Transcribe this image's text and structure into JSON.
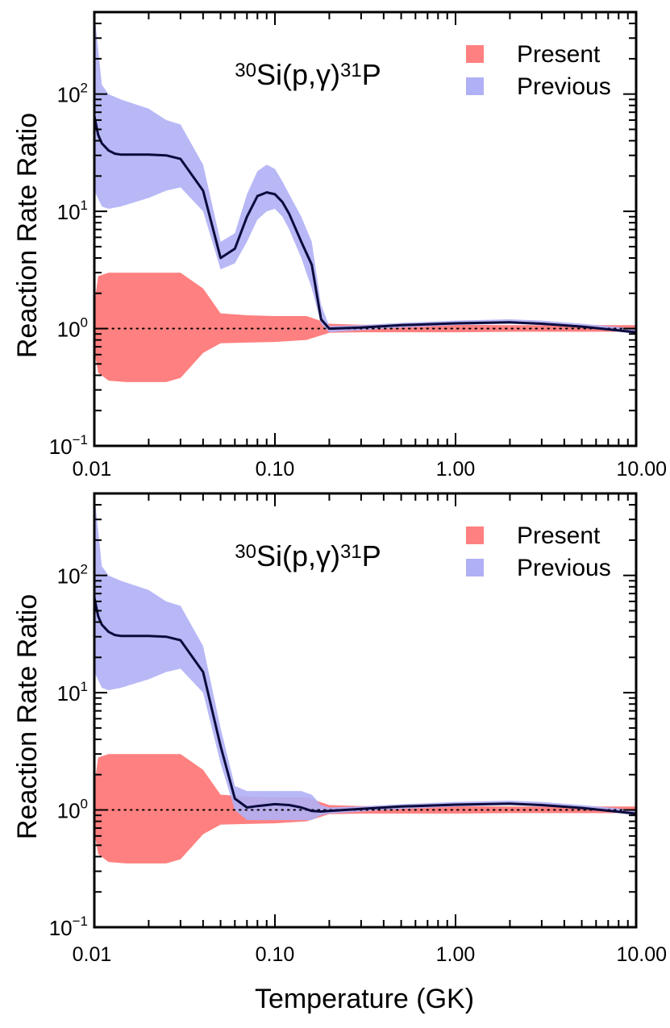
{
  "figure": {
    "xlabel": "Temperature (GK)"
  },
  "chart_data": [
    {
      "type": "area",
      "title": {
        "pre": "30",
        "sym": "Si",
        "react": "p,γ",
        "post": "31",
        "prod": "P"
      },
      "xlabel": "",
      "ylabel": "Reaction Rate Ratio",
      "xscale": "log",
      "yscale": "log",
      "xlim": [
        0.01,
        10.0
      ],
      "ylim": [
        0.1,
        500
      ],
      "xticks": [
        "0.01",
        "0.10",
        "1.00",
        "10.00"
      ],
      "yticks": [
        {
          "base": "10",
          "exp": "−1"
        },
        {
          "base": "10",
          "exp": "0"
        },
        {
          "base": "10",
          "exp": "1"
        },
        {
          "base": "10",
          "exp": "2"
        }
      ],
      "legend": {
        "position": "top-right"
      },
      "reference_line": 1,
      "series": [
        {
          "name": "Present",
          "color": "#ff8080",
          "x": [
            0.01,
            0.0105,
            0.012,
            0.015,
            0.02,
            0.025,
            0.03,
            0.04,
            0.05,
            0.07,
            0.1,
            0.15,
            0.2,
            0.3,
            0.5,
            1.0,
            2.0,
            5.0,
            10.0
          ],
          "upper": [
            1.6,
            2.8,
            3.0,
            3.0,
            3.0,
            3.0,
            3.0,
            2.2,
            1.35,
            1.3,
            1.28,
            1.28,
            1.1,
            1.08,
            1.08,
            1.08,
            1.07,
            1.07,
            1.07
          ],
          "lower": [
            0.65,
            0.42,
            0.36,
            0.35,
            0.35,
            0.35,
            0.38,
            0.62,
            0.75,
            0.76,
            0.77,
            0.8,
            0.92,
            0.93,
            0.93,
            0.93,
            0.94,
            0.94,
            0.94
          ]
        },
        {
          "name": "Previous",
          "color": "#b0b0f6",
          "x": [
            0.01,
            0.011,
            0.012,
            0.014,
            0.02,
            0.025,
            0.03,
            0.04,
            0.05,
            0.06,
            0.07,
            0.08,
            0.09,
            0.1,
            0.11,
            0.12,
            0.14,
            0.16,
            0.18,
            0.2,
            0.3,
            0.5,
            1.0,
            2.0,
            3.0,
            5.0,
            10.0
          ],
          "upper": [
            500,
            120,
            100,
            90,
            75,
            60,
            55,
            25,
            5.5,
            6.5,
            14,
            22,
            25,
            23,
            18,
            14,
            9,
            5.5,
            1.6,
            1.05,
            1.07,
            1.12,
            1.17,
            1.2,
            1.17,
            1.1,
            1.0
          ],
          "lower": [
            15,
            11,
            10.5,
            11,
            13,
            15,
            16,
            10,
            3.2,
            3.6,
            5.5,
            8.5,
            10,
            10.5,
            9,
            7,
            4,
            2.2,
            1.1,
            0.93,
            0.97,
            1.02,
            1.07,
            1.1,
            1.07,
            1.02,
            0.9
          ]
        }
      ],
      "median": {
        "color": "#0b0b3c",
        "x": [
          0.01,
          0.0105,
          0.011,
          0.012,
          0.013,
          0.014,
          0.02,
          0.025,
          0.03,
          0.04,
          0.05,
          0.06,
          0.07,
          0.08,
          0.09,
          0.1,
          0.11,
          0.12,
          0.14,
          0.16,
          0.18,
          0.2,
          0.3,
          0.5,
          1.0,
          2.0,
          3.0,
          5.0,
          10.0
        ],
        "y": [
          65,
          45,
          38,
          33,
          31,
          30.5,
          30.5,
          30,
          28,
          15,
          4.0,
          4.8,
          9,
          13.5,
          14.5,
          14,
          12,
          9.5,
          5.5,
          3.5,
          1.2,
          1.0,
          1.02,
          1.07,
          1.11,
          1.13,
          1.1,
          1.04,
          0.93
        ]
      }
    },
    {
      "type": "area",
      "title": {
        "pre": "30",
        "sym": "Si",
        "react": "p,γ",
        "post": "31",
        "prod": "P"
      },
      "xlabel": "",
      "ylabel": "Reaction Rate Ratio",
      "xscale": "log",
      "yscale": "log",
      "xlim": [
        0.01,
        10.0
      ],
      "ylim": [
        0.1,
        500
      ],
      "xticks": [
        "0.01",
        "0.10",
        "1.00",
        "10.00"
      ],
      "yticks": [
        {
          "base": "10",
          "exp": "−1"
        },
        {
          "base": "10",
          "exp": "0"
        },
        {
          "base": "10",
          "exp": "1"
        },
        {
          "base": "10",
          "exp": "2"
        }
      ],
      "legend": {
        "position": "top-right"
      },
      "reference_line": 1,
      "series": [
        {
          "name": "Present",
          "color": "#ff8080",
          "x": [
            0.01,
            0.0105,
            0.012,
            0.015,
            0.02,
            0.025,
            0.03,
            0.04,
            0.05,
            0.07,
            0.1,
            0.15,
            0.2,
            0.3,
            0.5,
            1.0,
            2.0,
            5.0,
            10.0
          ],
          "upper": [
            1.6,
            2.8,
            3.0,
            3.0,
            3.0,
            3.0,
            3.0,
            2.2,
            1.35,
            1.3,
            1.28,
            1.28,
            1.1,
            1.08,
            1.08,
            1.08,
            1.07,
            1.07,
            1.07
          ],
          "lower": [
            0.65,
            0.42,
            0.36,
            0.35,
            0.35,
            0.35,
            0.38,
            0.62,
            0.75,
            0.76,
            0.77,
            0.8,
            0.92,
            0.93,
            0.93,
            0.93,
            0.94,
            0.94,
            0.94
          ]
        },
        {
          "name": "Previous",
          "color": "#b0b0f6",
          "x": [
            0.01,
            0.011,
            0.012,
            0.014,
            0.02,
            0.025,
            0.03,
            0.04,
            0.05,
            0.06,
            0.07,
            0.08,
            0.1,
            0.12,
            0.14,
            0.16,
            0.18,
            0.2,
            0.3,
            0.5,
            1.0,
            2.0,
            3.0,
            5.0,
            10.0
          ],
          "upper": [
            500,
            120,
            100,
            90,
            75,
            60,
            55,
            25,
            5.0,
            1.6,
            1.45,
            1.45,
            1.45,
            1.45,
            1.45,
            1.35,
            1.1,
            1.05,
            1.07,
            1.12,
            1.17,
            1.2,
            1.17,
            1.1,
            1.0
          ],
          "lower": [
            15,
            11,
            10.5,
            11,
            13,
            15,
            16,
            10,
            2.5,
            1.0,
            0.82,
            0.82,
            0.82,
            0.82,
            0.82,
            0.82,
            0.9,
            0.93,
            0.97,
            1.02,
            1.07,
            1.1,
            1.07,
            1.02,
            0.9
          ]
        }
      ],
      "median": {
        "color": "#0b0b3c",
        "x": [
          0.01,
          0.0105,
          0.011,
          0.012,
          0.013,
          0.014,
          0.02,
          0.025,
          0.03,
          0.04,
          0.05,
          0.06,
          0.07,
          0.08,
          0.1,
          0.12,
          0.14,
          0.16,
          0.18,
          0.2,
          0.3,
          0.5,
          1.0,
          2.0,
          3.0,
          5.0,
          10.0
        ],
        "y": [
          65,
          45,
          38,
          33,
          31,
          30.5,
          30.5,
          30,
          28,
          15,
          3.5,
          1.25,
          1.05,
          1.08,
          1.12,
          1.1,
          1.05,
          0.98,
          0.97,
          0.98,
          1.02,
          1.07,
          1.11,
          1.13,
          1.1,
          1.04,
          0.93
        ]
      }
    }
  ]
}
